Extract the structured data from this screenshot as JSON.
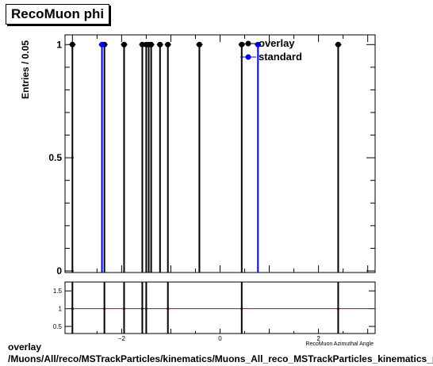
{
  "title": "RecoMuon phi",
  "footer": {
    "line1": "overlay",
    "line2": "/Muons/All/reco/MSTrackParticles/kinematics/Muons_All_reco_MSTrackParticles_kinematics_phi"
  },
  "chart_data": {
    "type": "histogram",
    "ylabel": "Entries / 0.05",
    "xlabel": "RecoMuon Azimuthal Angle",
    "xlim": [
      -3.15,
      3.15
    ],
    "ylim": [
      0,
      1.05
    ],
    "yticks": [
      0,
      0.5,
      1
    ],
    "xticks": [
      -2,
      0,
      2
    ],
    "legend": {
      "position": "top-right",
      "entries": [
        "overlay",
        "standard"
      ]
    },
    "series": [
      {
        "name": "overlay",
        "color": "#000000",
        "x": [
          -3.0,
          -2.35,
          -1.95,
          -1.58,
          -1.5,
          -1.45,
          -1.4,
          -1.22,
          -1.06,
          -0.42,
          0.44,
          2.4
        ],
        "y": [
          1,
          1,
          1,
          1,
          1,
          1,
          1,
          1,
          1,
          1,
          1,
          1
        ]
      },
      {
        "name": "standard",
        "color": "#0000ff",
        "x": [
          -2.4,
          0.77
        ],
        "y": [
          1,
          1
        ]
      }
    ],
    "ratio": {
      "ylim": [
        0.3,
        1.75
      ],
      "yticks": [
        0.5,
        1,
        1.5
      ],
      "reference": 1,
      "reference_color": "#cc0000",
      "x": [
        -3.0,
        -2.35,
        -1.95,
        -1.58,
        -1.5,
        -1.06,
        0.44,
        2.4
      ],
      "y": [
        1,
        1,
        1,
        1,
        1,
        1,
        1,
        1
      ]
    }
  }
}
